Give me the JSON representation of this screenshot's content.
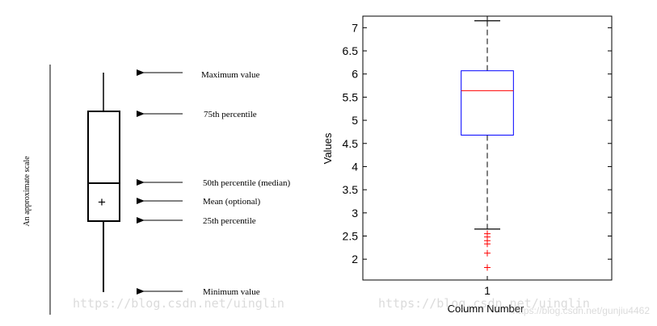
{
  "diagram": {
    "scale_label": "An approximate scale",
    "labels": {
      "maximum": "Maximum value",
      "p75": "75th percentile",
      "median": "50th percentile (median)",
      "mean": "Mean (optional)",
      "p25": "25th percentile",
      "minimum": "Minimum value"
    },
    "mean_marker": "+"
  },
  "chart_data": {
    "type": "boxplot",
    "title": "",
    "xlabel": "Column Number",
    "ylabel": "Values",
    "categories": [
      "1"
    ],
    "ylim": [
      1.55,
      7.25
    ],
    "yticks": [
      2,
      2.5,
      3,
      3.5,
      4,
      4.5,
      5,
      5.5,
      6,
      6.5,
      7
    ],
    "ytick_labels": [
      "2",
      "2.5",
      "3",
      "3.5",
      "4",
      "4.5",
      "5",
      "5.5",
      "6",
      "6.5",
      "7"
    ],
    "grid": false,
    "box": {
      "whisker_low": 2.65,
      "q1": 4.68,
      "median": 5.64,
      "q3": 6.07,
      "whisker_high": 7.15,
      "outliers": [
        2.55,
        2.48,
        2.4,
        2.33,
        2.13,
        1.82
      ]
    },
    "colors": {
      "box": "#0000ff",
      "median": "#ff0000",
      "outlier": "#ff0000",
      "whisker": "#000000"
    }
  },
  "watermarks": {
    "left": "https://blog.csdn.net/uinglin",
    "right": "https://blog.csdn.net/uinglin",
    "corner": "https://blog.csdn.net/gunjiu4462"
  }
}
